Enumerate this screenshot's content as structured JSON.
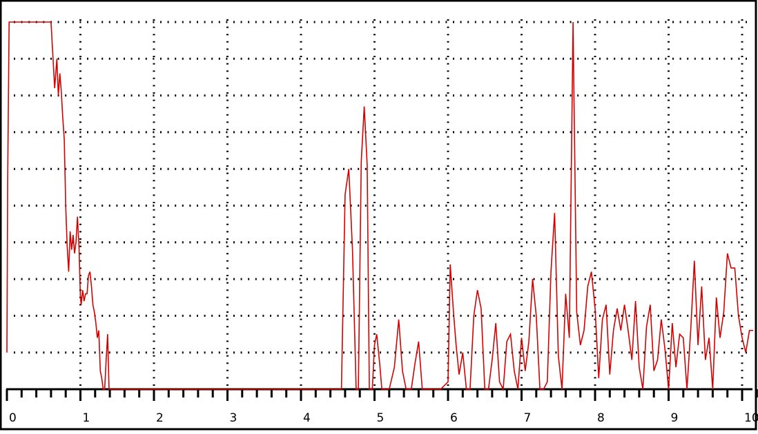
{
  "chart_data": {
    "type": "line",
    "title": "",
    "xlabel": "",
    "ylabel": "",
    "xlim": [
      0,
      10.2
    ],
    "ylim": [
      0,
      10
    ],
    "grid": true,
    "legend": "none",
    "x_ticks": [
      0,
      1,
      2,
      3,
      4,
      5,
      6,
      7,
      8,
      9,
      10
    ],
    "x_tick_labels": [
      "0",
      "1",
      "2",
      "3",
      "4",
      "5",
      "6",
      "7",
      "8",
      "9",
      "10"
    ],
    "series": [
      {
        "color": "#d40000",
        "x": [
          0.0,
          0.01,
          0.03,
          0.05,
          0.6,
          0.65,
          0.68,
          0.7,
          0.72,
          0.74,
          0.76,
          0.78,
          0.8,
          0.82,
          0.84,
          0.86,
          0.88,
          0.9,
          0.92,
          0.94,
          0.96,
          0.98,
          1.0,
          1.01,
          1.03,
          1.05,
          1.07,
          1.09,
          1.11,
          1.13,
          1.15,
          1.17,
          1.19,
          1.21,
          1.23,
          1.25,
          1.27,
          1.29,
          1.31,
          1.33,
          1.35,
          1.37,
          1.39,
          1.41,
          1.43,
          1.45,
          4.5,
          4.55,
          4.6,
          4.65,
          4.7,
          4.75,
          4.78,
          4.82,
          4.86,
          4.9,
          4.93,
          4.97,
          5.0,
          5.03,
          5.07,
          5.1,
          5.15,
          5.2,
          5.27,
          5.33,
          5.38,
          5.43,
          5.5,
          5.55,
          5.6,
          5.65,
          5.7,
          5.8,
          5.9,
          6.0,
          6.03,
          6.07,
          6.11,
          6.15,
          6.2,
          6.25,
          6.3,
          6.35,
          6.4,
          6.45,
          6.5,
          6.55,
          6.6,
          6.65,
          6.7,
          6.75,
          6.8,
          6.85,
          6.9,
          6.95,
          7.0,
          7.05,
          7.1,
          7.15,
          7.2,
          7.25,
          7.3,
          7.35,
          7.4,
          7.45,
          7.5,
          7.55,
          7.6,
          7.65,
          7.7,
          7.75,
          7.8,
          7.85,
          7.9,
          7.95,
          8.0,
          8.05,
          8.1,
          8.15,
          8.2,
          8.25,
          8.3,
          8.35,
          8.4,
          8.45,
          8.5,
          8.55,
          8.6,
          8.65,
          8.7,
          8.75,
          8.8,
          8.85,
          8.9,
          8.95,
          9.0,
          9.05,
          9.1,
          9.15,
          9.2,
          9.25,
          9.3,
          9.35,
          9.4,
          9.45,
          9.5,
          9.55,
          9.6,
          9.65,
          9.7,
          9.75,
          9.8,
          9.85,
          9.9,
          9.95,
          10.0,
          10.05,
          10.1,
          10.15
        ],
        "y": [
          1.0,
          5.6,
          10.0,
          10.0,
          10.0,
          8.2,
          9.0,
          8.0,
          8.6,
          8.1,
          7.4,
          6.8,
          5.0,
          3.9,
          3.2,
          4.3,
          3.8,
          4.2,
          3.7,
          4.0,
          4.7,
          3.9,
          2.5,
          2.3,
          2.7,
          2.4,
          2.6,
          2.6,
          3.1,
          3.2,
          2.8,
          2.3,
          2.1,
          1.8,
          1.4,
          1.6,
          0.5,
          0.3,
          0.0,
          0.0,
          0.8,
          1.5,
          0.0,
          0.0,
          0.0,
          0.0,
          0.0,
          0.0,
          5.3,
          6.0,
          3.8,
          0.0,
          0.0,
          6.2,
          7.7,
          6.1,
          0.0,
          0.0,
          1.2,
          1.5,
          0.7,
          0.0,
          0.0,
          0.0,
          0.6,
          1.9,
          0.5,
          0.0,
          0.0,
          0.7,
          1.3,
          0.0,
          0.0,
          0.0,
          0.0,
          0.2,
          3.4,
          2.2,
          1.2,
          0.4,
          1.0,
          0.0,
          0.0,
          2.0,
          2.7,
          2.2,
          0.0,
          0.0,
          0.8,
          1.8,
          0.2,
          0.0,
          1.3,
          1.5,
          0.5,
          0.0,
          1.4,
          0.5,
          1.3,
          3.0,
          2.0,
          0.0,
          0.0,
          0.2,
          3.2,
          4.8,
          0.9,
          0.0,
          2.6,
          1.4,
          10.0,
          2.1,
          1.2,
          1.6,
          2.8,
          3.2,
          2.2,
          0.3,
          1.9,
          2.3,
          0.4,
          1.6,
          2.2,
          1.6,
          2.3,
          1.6,
          0.8,
          2.4,
          0.6,
          0.0,
          1.7,
          2.3,
          0.5,
          0.8,
          1.9,
          1.1,
          0.0,
          1.8,
          0.6,
          1.5,
          1.4,
          0.0,
          1.6,
          3.5,
          1.2,
          2.8,
          0.8,
          1.4,
          0.0,
          2.5,
          1.4,
          2.1,
          3.7,
          3.3,
          3.3,
          2.0,
          1.4,
          1.0,
          1.6,
          1.6
        ]
      }
    ]
  }
}
